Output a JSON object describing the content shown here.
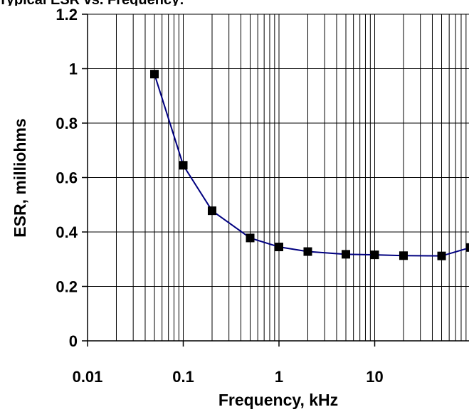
{
  "chart_data": {
    "type": "scatter",
    "title": "Typical ESR vs. Frequency:",
    "xlabel": "Frequency, kHz",
    "ylabel": "ESR, milliohms",
    "x_scale": "log",
    "xlim": [
      0.01,
      100
    ],
    "ylim": [
      0,
      1.2
    ],
    "grid": true,
    "legend": "none",
    "line_color": "#000080",
    "marker_color": "#000000",
    "x_ticks": [
      {
        "value": 0.01,
        "label": "0.01"
      },
      {
        "value": 0.1,
        "label": "0.1"
      },
      {
        "value": 1,
        "label": "1"
      },
      {
        "value": 10,
        "label": "10"
      }
    ],
    "y_ticks": [
      {
        "value": 0,
        "label": "0"
      },
      {
        "value": 0.2,
        "label": "0.2"
      },
      {
        "value": 0.4,
        "label": "0.4"
      },
      {
        "value": 0.6,
        "label": "0.6"
      },
      {
        "value": 0.8,
        "label": "0.8"
      },
      {
        "value": 1,
        "label": "1"
      },
      {
        "value": 1.2,
        "label": "1.2"
      }
    ],
    "series": [
      {
        "x": [
          0.05,
          0.1,
          0.2,
          0.5,
          1,
          2,
          5,
          10,
          20,
          50,
          100
        ],
        "y": [
          0.98,
          0.645,
          0.478,
          0.378,
          0.345,
          0.328,
          0.318,
          0.316,
          0.313,
          0.312,
          0.343
        ]
      }
    ]
  }
}
